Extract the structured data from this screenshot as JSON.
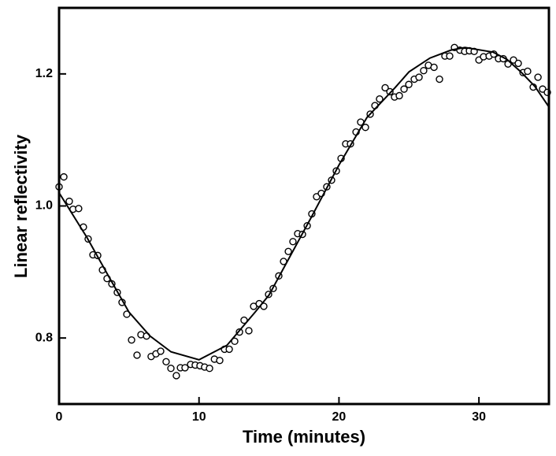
{
  "chart_data": {
    "type": "scatter",
    "x_label": "Time (minutes)",
    "y_label": "Linear reflectivity",
    "xlim": [
      0,
      35
    ],
    "ylim": [
      0.7,
      1.3
    ],
    "xticks": [
      0,
      10,
      20,
      30
    ],
    "yticks": [
      0.8,
      {
        "value": 1,
        "label": "1.0"
      },
      1.2
    ],
    "series": [
      {
        "type": "scatter",
        "color": "#000000",
        "x": [
          0,
          0.34,
          0.73,
          1.0,
          1.4,
          1.74,
          2.08,
          2.42,
          2.76,
          3.1,
          3.43,
          3.77,
          4.16,
          4.5,
          4.84,
          5.18,
          5.57,
          5.85,
          6.25,
          6.58,
          6.92,
          7.26,
          7.65,
          7.99,
          8.38,
          8.67,
          9.0,
          9.4,
          9.73,
          10.07,
          10.4,
          10.75,
          11.1,
          11.48,
          11.82,
          12.16,
          12.55,
          12.89,
          13.22,
          13.56,
          13.9,
          14.3,
          14.63,
          14.97,
          15.3,
          15.7,
          16.04,
          16.38,
          16.71,
          17.05,
          17.39,
          17.73,
          18.06,
          18.4,
          18.74,
          19.13,
          19.47,
          19.81,
          20.15,
          20.48,
          20.82,
          21.22,
          21.55,
          21.89,
          22.23,
          22.57,
          22.9,
          23.3,
          23.64,
          23.97,
          24.31,
          24.65,
          24.99,
          25.38,
          25.72,
          26.05,
          26.39,
          26.79,
          27.18,
          27.57,
          27.91,
          28.25,
          28.64,
          28.98,
          29.32,
          29.66,
          30.0,
          30.33,
          30.73,
          31.06,
          31.4,
          31.74,
          32.08,
          32.47,
          32.81,
          33.15,
          33.48,
          33.88,
          34.22,
          34.55,
          34.89
        ],
        "values": [
          1.029,
          1.044,
          1.007,
          0.995,
          0.996,
          0.968,
          0.95,
          0.926,
          0.925,
          0.903,
          0.89,
          0.882,
          0.869,
          0.854,
          0.836,
          0.797,
          0.774,
          0.805,
          0.803,
          0.772,
          0.776,
          0.78,
          0.764,
          0.754,
          0.743,
          0.755,
          0.755,
          0.76,
          0.759,
          0.758,
          0.756,
          0.754,
          0.768,
          0.766,
          0.783,
          0.783,
          0.795,
          0.809,
          0.827,
          0.811,
          0.848,
          0.852,
          0.848,
          0.866,
          0.875,
          0.894,
          0.916,
          0.931,
          0.946,
          0.958,
          0.957,
          0.97,
          0.988,
          1.014,
          1.019,
          1.029,
          1.039,
          1.053,
          1.072,
          1.094,
          1.094,
          1.112,
          1.127,
          1.119,
          1.139,
          1.152,
          1.162,
          1.179,
          1.173,
          1.165,
          1.167,
          1.177,
          1.184,
          1.192,
          1.195,
          1.205,
          1.213,
          1.21,
          1.192,
          1.227,
          1.227,
          1.24,
          1.236,
          1.234,
          1.235,
          1.234,
          1.221,
          1.226,
          1.227,
          1.23,
          1.223,
          1.223,
          1.215,
          1.221,
          1.216,
          1.202,
          1.204,
          1.18,
          1.195,
          1.177,
          1.172
        ]
      },
      {
        "type": "line",
        "color": "#000000",
        "x": [
          0,
          2,
          3.5,
          5,
          6.5,
          8,
          10,
          12,
          14,
          15,
          16,
          18,
          20,
          22,
          24,
          25,
          26.5,
          28,
          29,
          31,
          32,
          33,
          34,
          35
        ],
        "values": [
          1.02,
          0.952,
          0.895,
          0.839,
          0.803,
          0.779,
          0.767,
          0.789,
          0.839,
          0.865,
          0.904,
          0.982,
          1.062,
          1.134,
          1.179,
          1.203,
          1.224,
          1.236,
          1.24,
          1.233,
          1.222,
          1.203,
          1.181,
          1.15
        ]
      }
    ]
  }
}
